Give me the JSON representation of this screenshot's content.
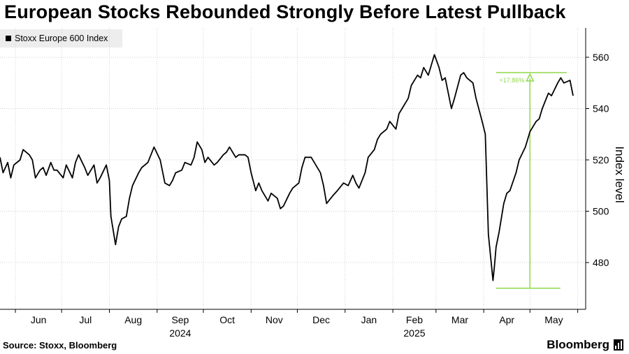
{
  "chart_data": {
    "type": "line",
    "title": "European Stocks Rebounded Strongly Before Latest Pullback",
    "ylabel": "Index level",
    "ylim": [
      460,
      570
    ],
    "yticks": [
      480,
      500,
      520,
      540,
      560
    ],
    "x_months": [
      {
        "label": "Jun",
        "year": ""
      },
      {
        "label": "Jul",
        "year": ""
      },
      {
        "label": "Aug",
        "year": ""
      },
      {
        "label": "Sep",
        "year": "2024"
      },
      {
        "label": "Oct",
        "year": ""
      },
      {
        "label": "Nov",
        "year": ""
      },
      {
        "label": "Dec",
        "year": ""
      },
      {
        "label": "Jan",
        "year": ""
      },
      {
        "label": "Feb",
        "year": "2025"
      },
      {
        "label": "Mar",
        "year": ""
      },
      {
        "label": "Apr",
        "year": ""
      },
      {
        "label": "May",
        "year": ""
      }
    ],
    "x_range": [
      "2024-05-22",
      "2025-05-29"
    ],
    "grid": true,
    "legend_position": "top-left",
    "series": [
      {
        "name": "Stoxx Europe 600 Index",
        "color": "#000000",
        "points": [
          [
            "2024-05-22",
            521
          ],
          [
            "2024-05-24",
            515
          ],
          [
            "2024-05-27",
            519
          ],
          [
            "2024-05-29",
            513
          ],
          [
            "2024-05-31",
            518
          ],
          [
            "2024-06-04",
            520
          ],
          [
            "2024-06-06",
            524
          ],
          [
            "2024-06-10",
            522
          ],
          [
            "2024-06-12",
            520
          ],
          [
            "2024-06-14",
            513
          ],
          [
            "2024-06-17",
            516
          ],
          [
            "2024-06-19",
            517
          ],
          [
            "2024-06-21",
            514
          ],
          [
            "2024-06-24",
            519
          ],
          [
            "2024-06-26",
            516
          ],
          [
            "2024-06-28",
            516
          ],
          [
            "2024-07-02",
            513
          ],
          [
            "2024-07-04",
            518
          ],
          [
            "2024-07-08",
            513
          ],
          [
            "2024-07-10",
            519
          ],
          [
            "2024-07-12",
            522
          ],
          [
            "2024-07-16",
            517
          ],
          [
            "2024-07-18",
            514
          ],
          [
            "2024-07-22",
            518
          ],
          [
            "2024-07-24",
            511
          ],
          [
            "2024-07-26",
            513
          ],
          [
            "2024-07-30",
            518
          ],
          [
            "2024-08-01",
            512
          ],
          [
            "2024-08-02",
            498
          ],
          [
            "2024-08-05",
            487
          ],
          [
            "2024-08-07",
            494
          ],
          [
            "2024-08-09",
            497
          ],
          [
            "2024-08-12",
            498
          ],
          [
            "2024-08-14",
            505
          ],
          [
            "2024-08-16",
            510
          ],
          [
            "2024-08-20",
            515
          ],
          [
            "2024-08-22",
            517
          ],
          [
            "2024-08-26",
            519
          ],
          [
            "2024-08-28",
            522
          ],
          [
            "2024-08-30",
            525
          ],
          [
            "2024-09-03",
            520
          ],
          [
            "2024-09-06",
            511
          ],
          [
            "2024-09-09",
            510
          ],
          [
            "2024-09-11",
            512
          ],
          [
            "2024-09-13",
            515
          ],
          [
            "2024-09-17",
            516
          ],
          [
            "2024-09-19",
            519
          ],
          [
            "2024-09-23",
            518
          ],
          [
            "2024-09-25",
            521
          ],
          [
            "2024-09-27",
            527
          ],
          [
            "2024-09-30",
            524
          ],
          [
            "2024-10-02",
            519
          ],
          [
            "2024-10-04",
            521
          ],
          [
            "2024-10-08",
            518
          ],
          [
            "2024-10-10",
            519
          ],
          [
            "2024-10-14",
            522
          ],
          [
            "2024-10-16",
            523
          ],
          [
            "2024-10-18",
            525
          ],
          [
            "2024-10-22",
            521
          ],
          [
            "2024-10-24",
            522
          ],
          [
            "2024-10-28",
            522
          ],
          [
            "2024-10-30",
            521
          ],
          [
            "2024-11-01",
            515
          ],
          [
            "2024-11-04",
            508
          ],
          [
            "2024-11-06",
            511
          ],
          [
            "2024-11-08",
            508
          ],
          [
            "2024-11-12",
            504
          ],
          [
            "2024-11-14",
            507
          ],
          [
            "2024-11-18",
            505
          ],
          [
            "2024-11-20",
            501
          ],
          [
            "2024-11-22",
            502
          ],
          [
            "2024-11-26",
            507
          ],
          [
            "2024-11-28",
            509
          ],
          [
            "2024-12-02",
            511
          ],
          [
            "2024-12-04",
            517
          ],
          [
            "2024-12-06",
            521
          ],
          [
            "2024-12-10",
            521
          ],
          [
            "2024-12-12",
            519
          ],
          [
            "2024-12-16",
            515
          ],
          [
            "2024-12-18",
            510
          ],
          [
            "2024-12-20",
            503
          ],
          [
            "2024-12-24",
            506
          ],
          [
            "2024-12-27",
            508
          ],
          [
            "2024-12-31",
            511
          ],
          [
            "2025-01-03",
            510
          ],
          [
            "2025-01-06",
            514
          ],
          [
            "2025-01-08",
            511
          ],
          [
            "2025-01-10",
            509
          ],
          [
            "2025-01-14",
            515
          ],
          [
            "2025-01-16",
            521
          ],
          [
            "2025-01-20",
            524
          ],
          [
            "2025-01-22",
            528
          ],
          [
            "2025-01-24",
            530
          ],
          [
            "2025-01-28",
            532
          ],
          [
            "2025-01-30",
            535
          ],
          [
            "2025-02-03",
            532
          ],
          [
            "2025-02-05",
            538
          ],
          [
            "2025-02-07",
            540
          ],
          [
            "2025-02-11",
            544
          ],
          [
            "2025-02-13",
            549
          ],
          [
            "2025-02-17",
            553
          ],
          [
            "2025-02-19",
            552
          ],
          [
            "2025-02-21",
            556
          ],
          [
            "2025-02-24",
            553
          ],
          [
            "2025-02-26",
            557
          ],
          [
            "2025-02-28",
            561
          ],
          [
            "2025-03-03",
            556
          ],
          [
            "2025-03-05",
            551
          ],
          [
            "2025-03-07",
            552
          ],
          [
            "2025-03-11",
            540
          ],
          [
            "2025-03-13",
            544
          ],
          [
            "2025-03-17",
            553
          ],
          [
            "2025-03-19",
            554
          ],
          [
            "2025-03-21",
            552
          ],
          [
            "2025-03-25",
            550
          ],
          [
            "2025-03-27",
            544
          ],
          [
            "2025-03-31",
            535
          ],
          [
            "2025-04-02",
            530
          ],
          [
            "2025-04-04",
            491
          ],
          [
            "2025-04-07",
            473
          ],
          [
            "2025-04-08",
            479
          ],
          [
            "2025-04-09",
            486
          ],
          [
            "2025-04-11",
            492
          ],
          [
            "2025-04-14",
            503
          ],
          [
            "2025-04-16",
            507
          ],
          [
            "2025-04-18",
            508
          ],
          [
            "2025-04-22",
            515
          ],
          [
            "2025-04-24",
            520
          ],
          [
            "2025-04-28",
            525
          ],
          [
            "2025-05-01",
            531
          ],
          [
            "2025-05-05",
            535
          ],
          [
            "2025-05-07",
            536
          ],
          [
            "2025-05-09",
            540
          ],
          [
            "2025-05-13",
            546
          ],
          [
            "2025-05-15",
            545
          ],
          [
            "2025-05-19",
            550
          ],
          [
            "2025-05-21",
            552
          ],
          [
            "2025-05-23",
            550
          ],
          [
            "2025-05-27",
            551
          ],
          [
            "2025-05-29",
            545
          ]
        ]
      }
    ],
    "annotation": {
      "text": "+17.86%",
      "color": "#8fd94a",
      "low": {
        "date": "2025-04-09",
        "value": 470
      },
      "high": {
        "date": "2025-05-23",
        "value": 554
      },
      "arrow_date": "2025-05-01"
    }
  },
  "footer": {
    "source": "Source: Stoxx, Bloomberg",
    "brand": "Bloomberg"
  }
}
